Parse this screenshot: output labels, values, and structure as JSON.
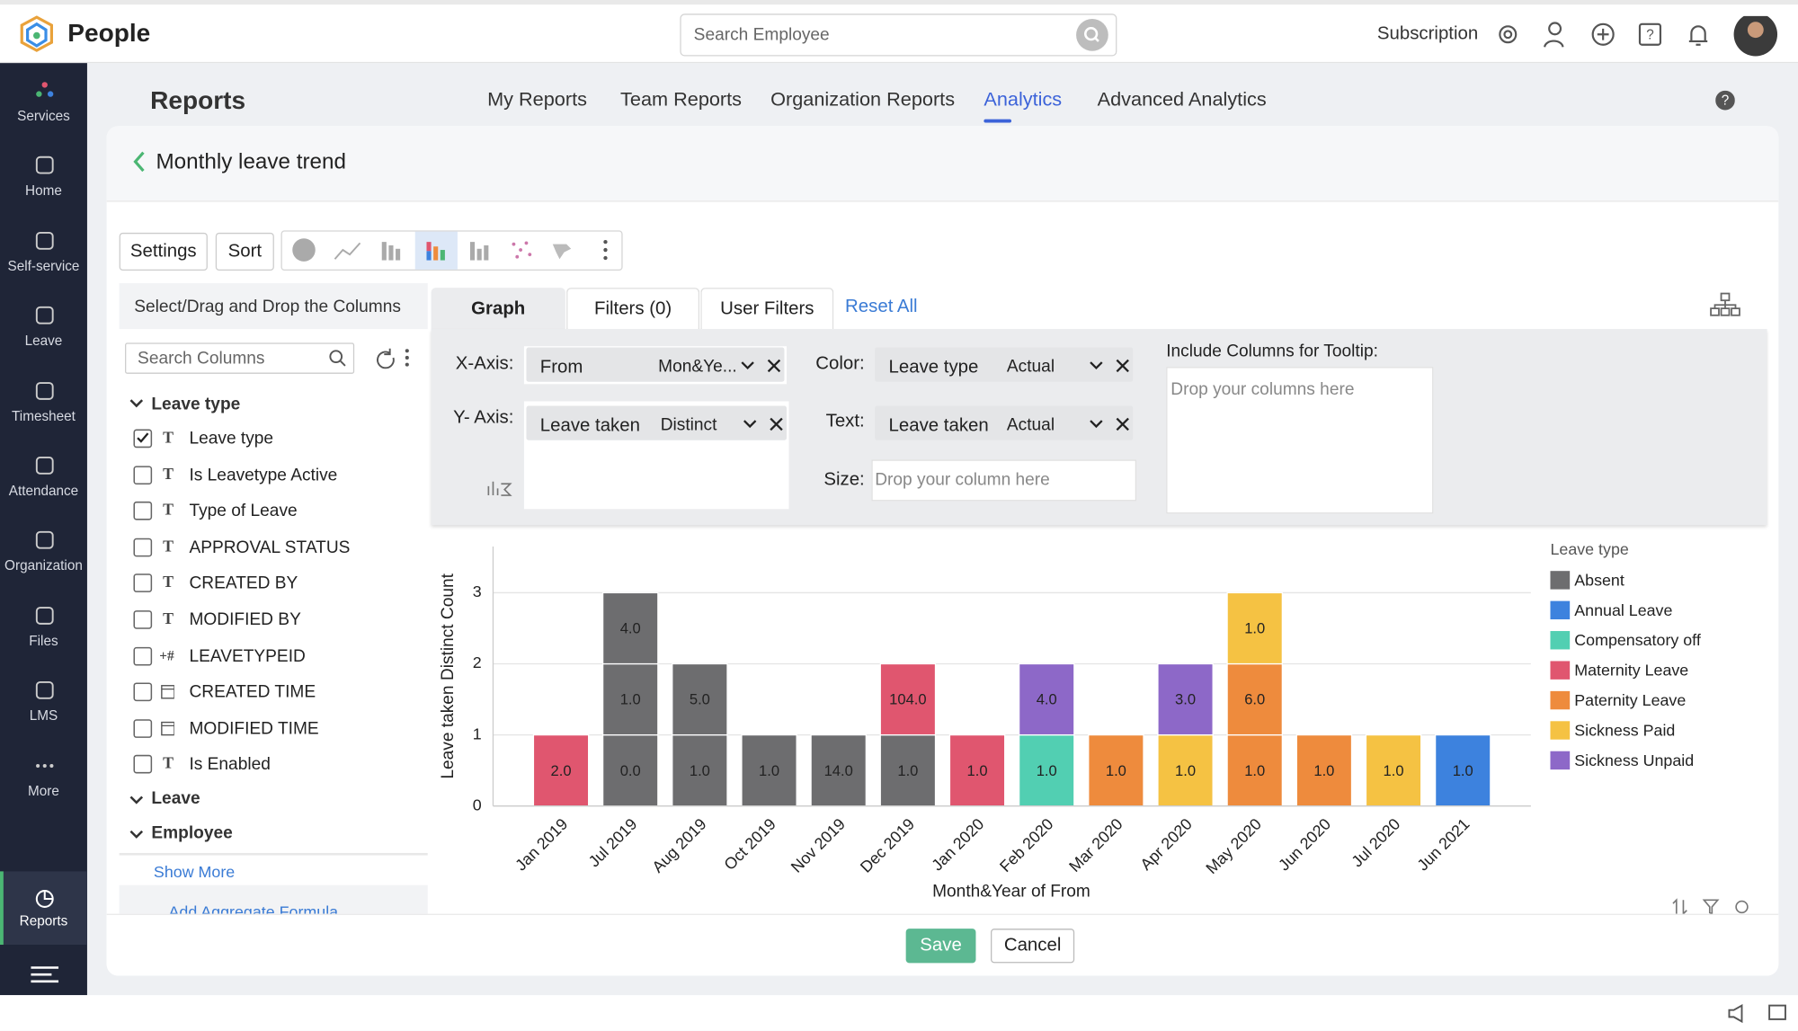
{
  "header": {
    "app": "People",
    "search": "Search Employee",
    "subscription": "Subscription"
  },
  "sidebar": {
    "items": [
      "Services",
      "Home",
      "Self-service",
      "Leave",
      "Timesheet",
      "Attendance",
      "Organization",
      "Files",
      "LMS",
      "More"
    ],
    "active": "Reports"
  },
  "page_title": "Reports",
  "tabs": {
    "items": [
      "My Reports",
      "Team Reports",
      "Organization Reports",
      "Analytics",
      "Advanced Analytics"
    ],
    "active": "Analytics"
  },
  "report_title": "Monthly leave trend",
  "toolbar": {
    "settings": "Settings",
    "sort": "Sort"
  },
  "columns_panel": {
    "title": "Select/Drag and Drop the Columns",
    "search": "Search Columns",
    "groups": [
      {
        "name": "Leave type",
        "items": [
          {
            "label": "Leave type",
            "icon": "T",
            "checked": true
          },
          {
            "label": "Is Leavetype Active",
            "icon": "T",
            "checked": false
          },
          {
            "label": "Type of Leave",
            "icon": "T",
            "checked": false
          },
          {
            "label": "APPROVAL STATUS",
            "icon": "T",
            "checked": false
          },
          {
            "label": "CREATED BY",
            "icon": "T",
            "checked": false
          },
          {
            "label": "MODIFIED BY",
            "icon": "T",
            "checked": false
          },
          {
            "label": "LEAVETYPEID",
            "icon": "+#",
            "checked": false
          },
          {
            "label": "CREATED TIME",
            "checked": false
          },
          {
            "label": "MODIFIED TIME",
            "checked": false
          },
          {
            "label": "Is Enabled",
            "icon": "T",
            "checked": false
          }
        ]
      },
      {
        "name": "Leave"
      },
      {
        "name": "Employee"
      }
    ],
    "show_more": "Show More",
    "add_formula": "Add Aggregate Formula"
  },
  "design_tabs": {
    "items": [
      "Graph",
      "Filters (0)",
      "User Filters"
    ],
    "reset": "Reset All"
  },
  "axes": {
    "x_label": "X-Axis:",
    "x_field": "From",
    "x_fn": "Mon&Ye...",
    "y_label": "Y- Axis:",
    "y_field": "Leave taken",
    "y_fn": "Distinct",
    "color_label": "Color:",
    "color_field": "Leave type",
    "color_fn": "Actual",
    "text_label": "Text:",
    "text_field": "Leave taken",
    "text_fn": "Actual",
    "size_label": "Size:",
    "size_placeholder": "Drop your column here",
    "tooltip_label": "Include Columns for Tooltip:",
    "tooltip_placeholder": "Drop your columns here"
  },
  "chart": {
    "type": "stacked_bar",
    "y_label": "Leave taken Distinct Count",
    "x_label": "Month&Year of From",
    "legend_title": "Leave type",
    "ylim": [
      0,
      3.65
    ],
    "yticks": [
      0,
      1,
      2,
      3
    ],
    "grid": true,
    "series": [
      {
        "name": "Absent",
        "color": "#6d6d6f"
      },
      {
        "name": "Annual Leave",
        "color": "#3d82de"
      },
      {
        "name": "Compensatory off",
        "color": "#52cfb2"
      },
      {
        "name": "Maternity Leave",
        "color": "#e0566f"
      },
      {
        "name": "Paternity Leave",
        "color": "#ee8b3d"
      },
      {
        "name": "Sickness Paid",
        "color": "#f5c243"
      },
      {
        "name": "Sickness Unpaid",
        "color": "#8d68c8"
      }
    ],
    "categories": [
      "Jan 2019",
      "Jul 2019",
      "Aug 2019",
      "Oct 2019",
      "Nov 2019",
      "Dec 2019",
      "Jan 2020",
      "Feb 2020",
      "Mar 2020",
      "Apr 2020",
      "May 2020",
      "Jun 2020",
      "Jul 2020",
      "Jun 2021"
    ],
    "stacks": [
      [
        {
          "series": "Maternity Leave",
          "value": 1,
          "label": "2.0"
        }
      ],
      [
        {
          "series": "Absent",
          "value": 1,
          "label": "0.0"
        },
        {
          "series": "Absent",
          "value": 1,
          "label": "1.0"
        },
        {
          "series": "Absent",
          "value": 1,
          "label": "4.0"
        }
      ],
      [
        {
          "series": "Absent",
          "value": 1,
          "label": "1.0"
        },
        {
          "series": "Absent",
          "value": 1,
          "label": "5.0"
        }
      ],
      [
        {
          "series": "Absent",
          "value": 1,
          "label": "1.0"
        }
      ],
      [
        {
          "series": "Absent",
          "value": 1,
          "label": "14.0"
        }
      ],
      [
        {
          "series": "Absent",
          "value": 1,
          "label": "1.0"
        },
        {
          "series": "Maternity Leave",
          "value": 1,
          "label": "104.0"
        }
      ],
      [
        {
          "series": "Maternity Leave",
          "value": 1,
          "label": "1.0"
        }
      ],
      [
        {
          "series": "Compensatory off",
          "value": 1,
          "label": "1.0"
        },
        {
          "series": "Sickness Unpaid",
          "value": 1,
          "label": "4.0"
        }
      ],
      [
        {
          "series": "Paternity Leave",
          "value": 1,
          "label": "1.0"
        }
      ],
      [
        {
          "series": "Sickness Paid",
          "value": 1,
          "label": "1.0"
        },
        {
          "series": "Sickness Unpaid",
          "value": 1,
          "label": "3.0"
        }
      ],
      [
        {
          "series": "Paternity Leave",
          "value": 1,
          "label": "1.0"
        },
        {
          "series": "Paternity Leave",
          "value": 1,
          "label": "6.0"
        },
        {
          "series": "Sickness Paid",
          "value": 1,
          "label": "1.0"
        }
      ],
      [
        {
          "series": "Paternity Leave",
          "value": 1,
          "label": "1.0"
        }
      ],
      [
        {
          "series": "Sickness Paid",
          "value": 1,
          "label": "1.0"
        }
      ],
      [
        {
          "series": "Annual Leave",
          "value": 1,
          "label": "1.0"
        }
      ]
    ]
  },
  "buttons": {
    "save": "Save",
    "cancel": "Cancel"
  }
}
